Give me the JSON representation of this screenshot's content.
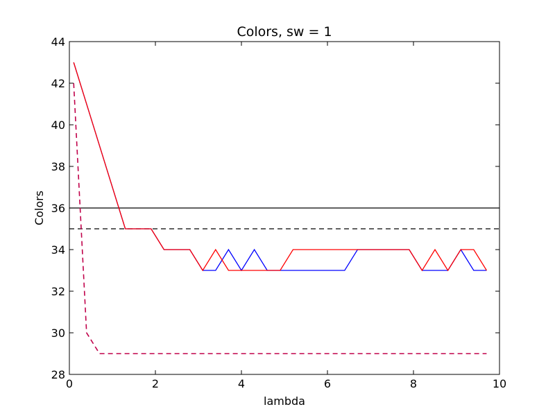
{
  "chart_data": {
    "type": "line",
    "title": "Colors, sw = 1",
    "xlabel": "lambda",
    "ylabel": "Colors",
    "xlim": [
      0,
      10
    ],
    "ylim": [
      28,
      44
    ],
    "xticks": [
      0,
      2,
      4,
      6,
      8,
      10
    ],
    "yticks": [
      28,
      30,
      32,
      34,
      36,
      38,
      40,
      42,
      44
    ],
    "grid": false,
    "hlines": [
      {
        "y": 36,
        "color": "#000000",
        "style": "solid"
      },
      {
        "y": 35,
        "color": "#000000",
        "style": "dashed"
      }
    ],
    "series": [
      {
        "color": "#0000ff",
        "style": "solid",
        "x": [
          0.1,
          1.3,
          1.9,
          2.2,
          2.8,
          3.1,
          3.4,
          3.7,
          4.0,
          4.3,
          4.6,
          4.9,
          5.2,
          6.4,
          6.7,
          7.9,
          8.2,
          8.5,
          8.8,
          9.1,
          9.4,
          9.7
        ],
        "y": [
          43,
          35,
          35,
          34,
          34,
          33,
          33,
          34,
          33,
          34,
          33,
          33,
          33,
          33,
          34,
          34,
          33,
          33,
          33,
          34,
          33,
          33
        ]
      },
      {
        "color": "#ff0000",
        "style": "solid",
        "x": [
          0.1,
          1.3,
          1.9,
          2.2,
          2.8,
          3.1,
          3.4,
          3.7,
          4.0,
          4.3,
          4.6,
          4.9,
          5.2,
          6.4,
          6.7,
          7.9,
          8.2,
          8.5,
          8.8,
          9.1,
          9.4,
          9.7
        ],
        "y": [
          43,
          35,
          35,
          34,
          34,
          33,
          34,
          33,
          33,
          33,
          33,
          33,
          34,
          34,
          34,
          34,
          33,
          34,
          33,
          34,
          34,
          33
        ]
      },
      {
        "color": "#c0004a",
        "style": "dashed",
        "x": [
          0.1,
          0.4,
          0.7,
          9.7
        ],
        "y": [
          42,
          30,
          29,
          29
        ]
      }
    ]
  }
}
